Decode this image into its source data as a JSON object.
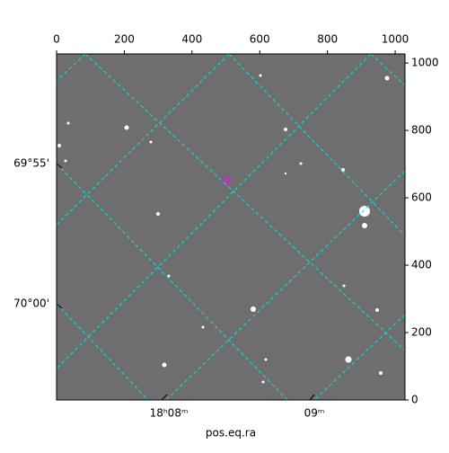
{
  "chart_data": {
    "type": "image",
    "xlabel": "pos.eq.ra",
    "xlim": [
      0,
      1029
    ],
    "ylim": [
      0,
      1027
    ],
    "xticks": [
      0,
      200,
      400,
      600,
      800,
      1000
    ],
    "yticks": [
      0,
      200,
      400,
      600,
      800,
      1000
    ],
    "ra_labels": [
      "18ʰ08ᵐ",
      "09ᵐ"
    ],
    "dec_labels": [
      "69°55'",
      "70°00'"
    ]
  }
}
